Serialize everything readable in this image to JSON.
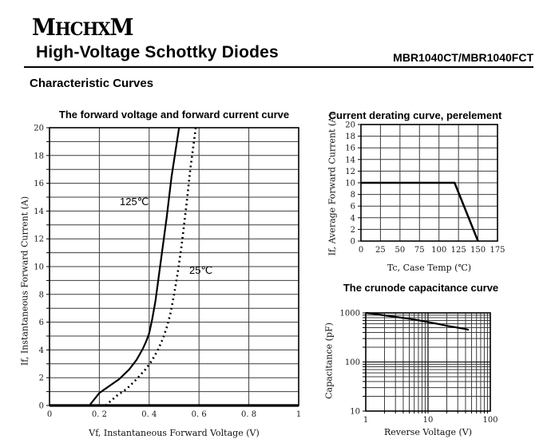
{
  "header": {
    "logo": "MHCHXM",
    "logo_letters": [
      "M",
      "HCHX",
      "M"
    ],
    "title": "High-Voltage Schottky Diodes",
    "part_number": "MBR1040CT/MBR1040FCT",
    "section_heading": "Characteristic Curves"
  },
  "colors": {
    "ink": "#000000",
    "grid": "#3c3c3c",
    "grid_major": "#161616",
    "tick_text": "#1a1a1a"
  },
  "chart_data": [
    {
      "id": "forward-voltage-curve",
      "type": "line",
      "title": "The forward voltage and forward current curve",
      "xlabel": "Vf, Instantaneous Forward Voltage (V)",
      "ylabel": "If, Instantaneous Forward Current (A)",
      "xscale": "linear",
      "yscale": "linear",
      "xlim": [
        0,
        1
      ],
      "ylim": [
        0,
        20
      ],
      "x_grid_step": 0.2,
      "y_grid_step": 1,
      "x_ticks": [
        0,
        0.2,
        0.4,
        0.6,
        0.8,
        1
      ],
      "x_tick_labels": [
        "0",
        "0. 2",
        "0. 4",
        "0. 6",
        "0. 8",
        "1"
      ],
      "y_ticks": [
        0,
        2,
        4,
        6,
        8,
        10,
        12,
        14,
        16,
        18,
        20
      ],
      "y_tick_labels": [
        "0",
        "2",
        "4",
        "6",
        "8",
        "10",
        "12",
        "14",
        "16",
        "18",
        "20"
      ],
      "grid": true,
      "thick_bottom": true,
      "series": [
        {
          "name": "125℃",
          "line": "solid",
          "width": 2.2,
          "points": [
            [
              0.16,
              0
            ],
            [
              0.2,
              0.9
            ],
            [
              0.24,
              1.4
            ],
            [
              0.28,
              1.9
            ],
            [
              0.32,
              2.6
            ],
            [
              0.35,
              3.3
            ],
            [
              0.375,
              4.1
            ],
            [
              0.39,
              4.7
            ],
            [
              0.4,
              5.2
            ],
            [
              0.412,
              6.2
            ],
            [
              0.425,
              7.5
            ],
            [
              0.44,
              9.5
            ],
            [
              0.455,
              11.5
            ],
            [
              0.47,
              13.5
            ],
            [
              0.49,
              16.5
            ],
            [
              0.52,
              20
            ]
          ]
        },
        {
          "name": "25℃",
          "line": "dotted",
          "width": 2.6,
          "points": [
            [
              0.225,
              0
            ],
            [
              0.27,
              0.7
            ],
            [
              0.31,
              1.2
            ],
            [
              0.35,
              1.9
            ],
            [
              0.385,
              2.6
            ],
            [
              0.41,
              3.2
            ],
            [
              0.435,
              4.0
            ],
            [
              0.455,
              4.8
            ],
            [
              0.47,
              5.6
            ],
            [
              0.485,
              6.6
            ],
            [
              0.5,
              8.0
            ],
            [
              0.515,
              9.6
            ],
            [
              0.53,
              11.5
            ],
            [
              0.55,
              14.5
            ],
            [
              0.565,
              17
            ],
            [
              0.587,
              20
            ]
          ]
        }
      ]
    },
    {
      "id": "current-derating-curve",
      "type": "line",
      "title": "Current derating curve, perelement",
      "xlabel": "Tc, Case Temp (℃)",
      "ylabel": "If, Average Forward Current (A)",
      "xscale": "linear",
      "yscale": "linear",
      "xlim": [
        0,
        175
      ],
      "ylim": [
        0,
        20
      ],
      "x_grid_step": 25,
      "y_grid_step": 2,
      "x_ticks": [
        0,
        25,
        50,
        75,
        100,
        125,
        150,
        175
      ],
      "x_tick_labels": [
        "0",
        "25",
        "50",
        "75",
        "100",
        "125",
        "150",
        "175"
      ],
      "y_ticks": [
        0,
        2,
        4,
        6,
        8,
        10,
        12,
        14,
        16,
        18,
        20
      ],
      "y_tick_labels": [
        "0",
        "2",
        "4",
        "6",
        "8",
        "10",
        "12",
        "14",
        "16",
        "18",
        "20"
      ],
      "grid": true,
      "thick_bottom": false,
      "series": [
        {
          "name": "derating",
          "line": "solid",
          "width": 2.5,
          "points": [
            [
              0,
              10
            ],
            [
              120,
              10
            ],
            [
              150,
              0
            ]
          ]
        }
      ]
    },
    {
      "id": "crunode-capacitance-curve",
      "type": "line",
      "title": "The crunode capacitance curve",
      "xlabel": "Reverse Voltage (V)",
      "ylabel": "Capacitance (pF)",
      "xscale": "log",
      "yscale": "log",
      "xlim": [
        1,
        100
      ],
      "ylim": [
        10,
        1000
      ],
      "x_ticks": [
        1,
        10,
        100
      ],
      "x_tick_labels": [
        "1",
        "10",
        "100"
      ],
      "y_ticks": [
        10,
        100,
        1000
      ],
      "y_tick_labels": [
        "10",
        "100",
        "1000"
      ],
      "grid": true,
      "thick_bottom": false,
      "series": [
        {
          "name": "capacitance",
          "line": "solid",
          "width": 2.2,
          "points": [
            [
              1,
              1000
            ],
            [
              1.5,
              940
            ],
            [
              2,
              890
            ],
            [
              3,
              830
            ],
            [
              4,
              790
            ],
            [
              5,
              760
            ],
            [
              7,
              710
            ],
            [
              10,
              650
            ],
            [
              15,
              590
            ],
            [
              20,
              545
            ],
            [
              30,
              500
            ],
            [
              40,
              470
            ],
            [
              45,
              450
            ]
          ]
        }
      ]
    }
  ]
}
